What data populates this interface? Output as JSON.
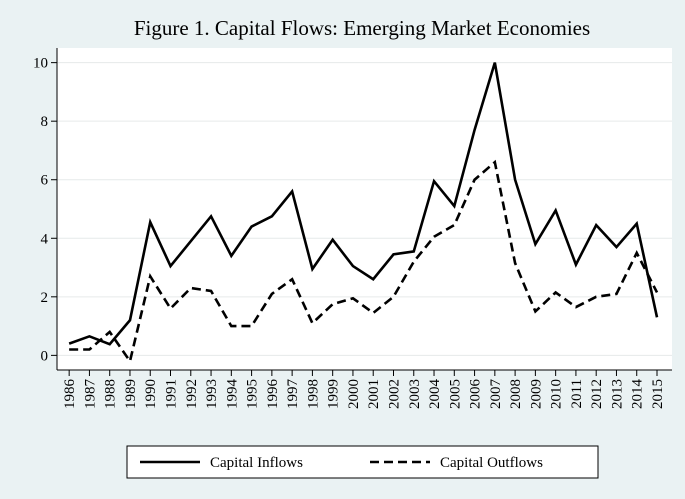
{
  "chart_data": {
    "type": "line",
    "title": "Figure 1. Capital Flows: Emerging Market Economies",
    "x": [
      1986,
      1987,
      1988,
      1989,
      1990,
      1991,
      1992,
      1993,
      1994,
      1995,
      1996,
      1997,
      1998,
      1999,
      2000,
      2001,
      2002,
      2003,
      2004,
      2005,
      2006,
      2007,
      2008,
      2009,
      2010,
      2011,
      2012,
      2013,
      2014,
      2015
    ],
    "series": [
      {
        "name": "Capital Inflows",
        "color": "#000000",
        "style": "solid",
        "values": [
          0.4,
          0.65,
          0.38,
          1.2,
          4.55,
          3.05,
          3.9,
          4.75,
          3.4,
          4.4,
          4.75,
          5.6,
          2.95,
          3.95,
          3.05,
          2.6,
          3.45,
          3.55,
          5.95,
          5.1,
          7.7,
          10.0,
          6.0,
          3.8,
          4.95,
          3.1,
          4.45,
          3.7,
          4.5,
          1.3
        ]
      },
      {
        "name": "Capital Outflows",
        "color": "#000000",
        "style": "dashed",
        "values": [
          0.2,
          0.2,
          0.8,
          -0.2,
          2.7,
          1.6,
          2.3,
          2.2,
          1.0,
          1.0,
          2.1,
          2.6,
          1.1,
          1.75,
          1.95,
          1.45,
          2.0,
          3.2,
          4.05,
          4.45,
          6.0,
          6.6,
          3.15,
          1.5,
          2.15,
          1.65,
          2.0,
          2.1,
          3.5,
          2.15
        ]
      }
    ],
    "xlim": [
      1985.4,
      2015.74
    ],
    "xticks": [
      1986,
      1987,
      1988,
      1989,
      1990,
      1991,
      1992,
      1993,
      1994,
      1995,
      1996,
      1997,
      1998,
      1999,
      2000,
      2001,
      2002,
      2003,
      2004,
      2005,
      2006,
      2007,
      2008,
      2009,
      2010,
      2011,
      2012,
      2013,
      2014,
      2015
    ],
    "ylim": [
      -0.5,
      10.5
    ],
    "yticks": [
      0,
      2,
      4,
      6,
      8,
      10
    ],
    "grid": true,
    "legend": "bottom"
  }
}
